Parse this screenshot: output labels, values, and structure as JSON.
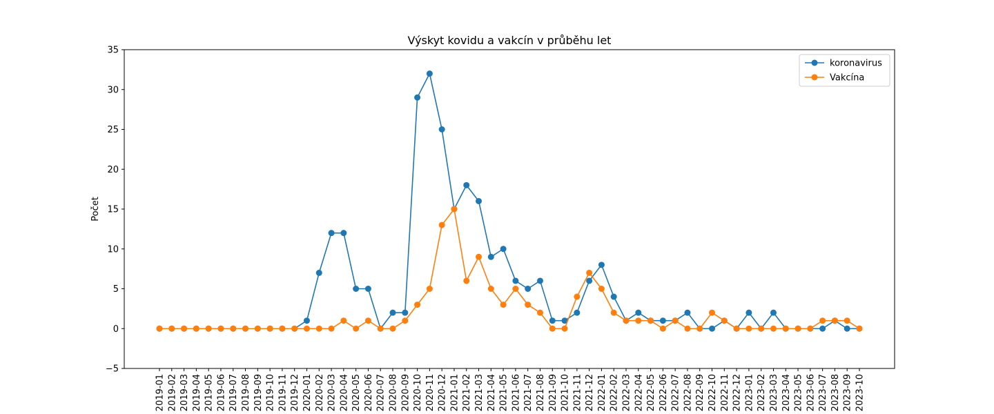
{
  "chart_data": {
    "type": "line",
    "title": "Výskyt kovidu a vakcín v průběhu let",
    "xlabel": "",
    "ylabel": "Počet",
    "ylim": [
      -5,
      35
    ],
    "yticks": [
      "−5",
      "0",
      "5",
      "10",
      "15",
      "20",
      "25",
      "30",
      "35"
    ],
    "yticks_values": [
      -5,
      0,
      5,
      10,
      15,
      20,
      25,
      30,
      35
    ],
    "grid": false,
    "legend_position": "top-right",
    "categories": [
      "2019-01",
      "2019-02",
      "2019-03",
      "2019-04",
      "2019-05",
      "2019-06",
      "2019-07",
      "2019-08",
      "2019-09",
      "2019-10",
      "2019-11",
      "2019-12",
      "2020-01",
      "2020-02",
      "2020-03",
      "2020-04",
      "2020-05",
      "2020-06",
      "2020-07",
      "2020-08",
      "2020-09",
      "2020-10",
      "2020-11",
      "2020-12",
      "2021-01",
      "2021-02",
      "2021-03",
      "2021-04",
      "2021-05",
      "2021-06",
      "2021-07",
      "2021-08",
      "2021-09",
      "2021-10",
      "2021-11",
      "2021-12",
      "2022-01",
      "2022-02",
      "2022-03",
      "2022-04",
      "2022-05",
      "2022-06",
      "2022-07",
      "2022-08",
      "2022-09",
      "2022-10",
      "2022-11",
      "2022-12",
      "2023-01",
      "2023-02",
      "2023-03",
      "2023-04",
      "2023-05",
      "2023-06",
      "2023-07",
      "2023-08",
      "2023-09",
      "2023-10"
    ],
    "series": [
      {
        "name": "koronavirus",
        "color": "#1f77b4",
        "values": [
          0,
          0,
          0,
          0,
          0,
          0,
          0,
          0,
          0,
          0,
          0,
          0,
          1,
          7,
          12,
          12,
          5,
          5,
          0,
          2,
          2,
          29,
          32,
          25,
          15,
          18,
          16,
          9,
          10,
          6,
          5,
          6,
          1,
          1,
          2,
          6,
          8,
          4,
          1,
          2,
          1,
          1,
          1,
          2,
          0,
          0,
          1,
          0,
          2,
          0,
          2,
          0,
          0,
          0,
          0,
          1,
          0,
          0
        ]
      },
      {
        "name": "Vakcína",
        "color": "#ff7f0e",
        "values": [
          0,
          0,
          0,
          0,
          0,
          0,
          0,
          0,
          0,
          0,
          0,
          0,
          0,
          0,
          0,
          1,
          0,
          1,
          0,
          0,
          1,
          3,
          5,
          13,
          15,
          6,
          9,
          5,
          3,
          5,
          3,
          2,
          0,
          0,
          4,
          7,
          5,
          2,
          1,
          1,
          1,
          0,
          1,
          0,
          0,
          2,
          1,
          0,
          0,
          0,
          0,
          0,
          0,
          0,
          1,
          1,
          1,
          0
        ]
      }
    ]
  }
}
